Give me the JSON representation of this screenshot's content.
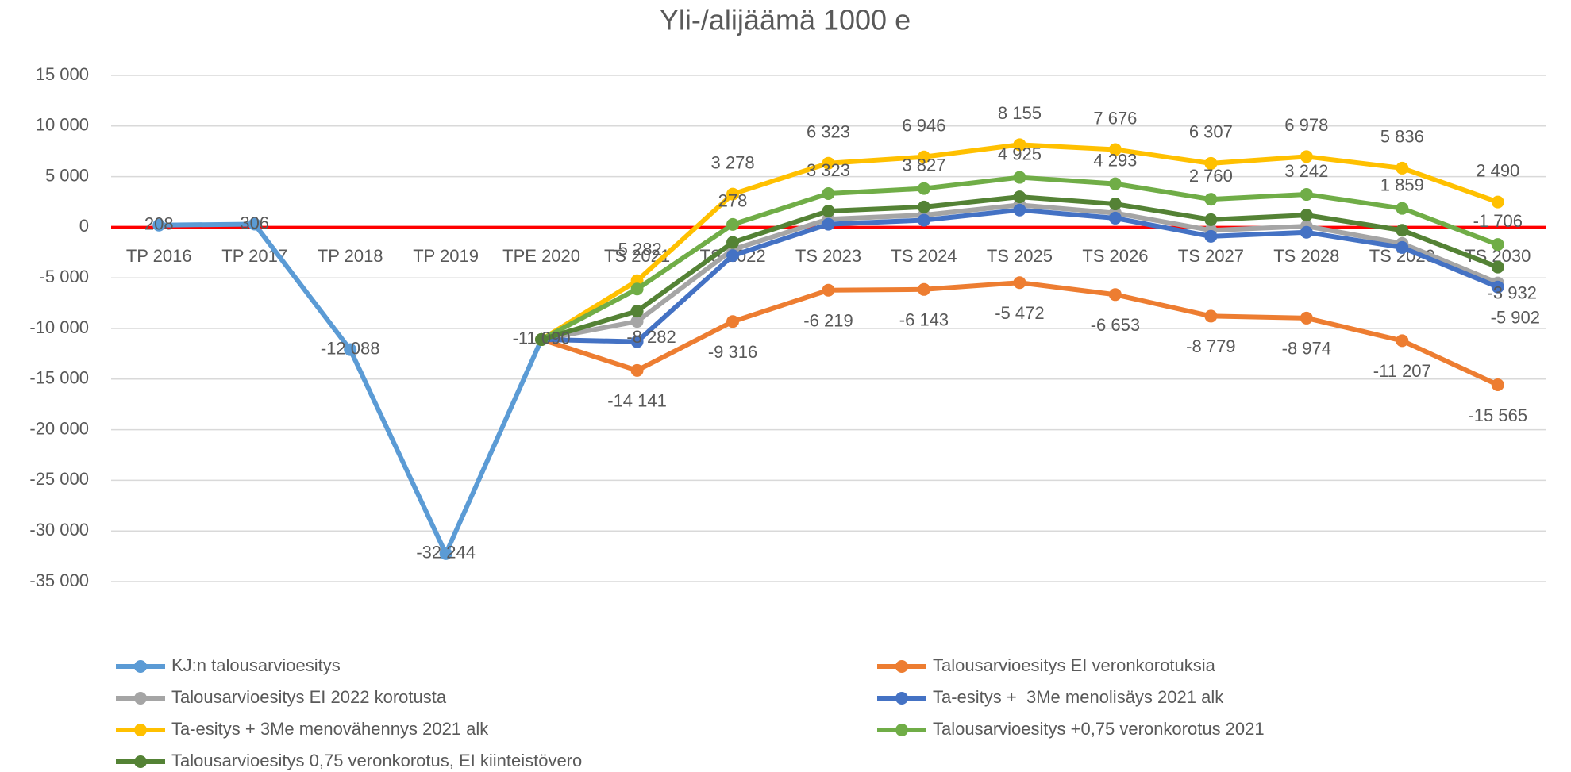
{
  "chart_data": {
    "type": "line",
    "title": "Yli-/alijäämä 1000 e",
    "categories": [
      "TP 2016",
      "TP 2017",
      "TP 2018",
      "TP 2019",
      "TPE 2020",
      "TS 2021",
      "TS 2022",
      "TS 2023",
      "TS 2024",
      "TS 2025",
      "TS 2026",
      "TS 2027",
      "TS 2028",
      "TS 2029",
      "TS 2030"
    ],
    "ylim": [
      -35000,
      15000
    ],
    "yticks": [
      {
        "value": -35000,
        "label": "-35 000"
      },
      {
        "value": -30000,
        "label": "-30 000"
      },
      {
        "value": -25000,
        "label": "-25 000"
      },
      {
        "value": -20000,
        "label": "-20 000"
      },
      {
        "value": -15000,
        "label": "-15 000"
      },
      {
        "value": -10000,
        "label": "-10 000"
      },
      {
        "value": -5000,
        "label": "-5 000"
      },
      0,
      {
        "value": 5000,
        "label": "5 000"
      },
      {
        "value": 10000,
        "label": "10 000"
      },
      {
        "value": 15000,
        "label": "15 000"
      }
    ],
    "grid": true,
    "series": [
      {
        "name": "KJ:n talousarvioesitys",
        "color": "#5b9bd5",
        "values": [
          208,
          306,
          -12088,
          -32244,
          -11090,
          null,
          null,
          null,
          null,
          null,
          null,
          null,
          null,
          null,
          null
        ],
        "value_labels": [
          "208",
          "306",
          "-12 088",
          "-32 244",
          "-11 090",
          null,
          null,
          null,
          null,
          null,
          null,
          null,
          null,
          null,
          null
        ]
      },
      {
        "name": "Talousarvioesitys EI veronkorotuksia",
        "color": "#ed7d31",
        "values": [
          null,
          null,
          null,
          null,
          -11090,
          -14141,
          -9316,
          -6219,
          -6143,
          -5472,
          -6653,
          -8779,
          -8974,
          -11207,
          -15565
        ],
        "value_labels": [
          null,
          null,
          null,
          null,
          null,
          "-14 141",
          "-9 316",
          "-6 219",
          "-6 143",
          "-5 472",
          "-6 653",
          "-8 779",
          "-8 974",
          "-11 207",
          "-15 565"
        ]
      },
      {
        "name": "Talousarvioesitys EI 2022 korotusta",
        "color": "#a5a5a5",
        "values": [
          null,
          null,
          null,
          null,
          -11090,
          -9300,
          -2200,
          800,
          1200,
          2200,
          1400,
          -300,
          100,
          -1600,
          -5500
        ]
      },
      {
        "name": "Ta-esitys +  3Me menolisäys 2021 alk",
        "color": "#4472c4",
        "values": [
          null,
          null,
          null,
          null,
          -11090,
          -11300,
          -2800,
          300,
          700,
          1700,
          900,
          -900,
          -500,
          -2000,
          -5902
        ],
        "value_labels": [
          null,
          null,
          null,
          null,
          null,
          null,
          null,
          null,
          null,
          null,
          null,
          null,
          null,
          null,
          "-5 902"
        ]
      },
      {
        "name": "Ta-esitys + 3Me menovähennys 2021 alk",
        "color": "#ffc000",
        "values": [
          null,
          null,
          null,
          null,
          -11090,
          -5282,
          3278,
          6323,
          6946,
          8155,
          7676,
          6307,
          6978,
          5836,
          2490
        ],
        "value_labels": [
          null,
          null,
          null,
          null,
          null,
          "-5 282",
          "3 278",
          "6 323",
          "6 946",
          "8 155",
          "7 676",
          "6 307",
          "6 978",
          "5 836",
          "2 490"
        ]
      },
      {
        "name": "Talousarvioesitys +0,75 veronkorotus 2021",
        "color": "#70ad47",
        "values": [
          null,
          null,
          null,
          null,
          -11090,
          -6100,
          278,
          3323,
          3827,
          4925,
          4293,
          2760,
          3242,
          1859,
          -1706
        ],
        "value_labels": [
          null,
          null,
          null,
          null,
          null,
          null,
          "278",
          "3 323",
          "3 827",
          "4 925",
          "4 293",
          "2 760",
          "3 242",
          "1 859",
          "-1 706"
        ]
      },
      {
        "name": "Talousarvioesitys 0,75 veronkorotus, EI kiinteistövero",
        "color": "#548235",
        "values": [
          null,
          null,
          null,
          null,
          -11090,
          -8282,
          -1500,
          1600,
          2000,
          3000,
          2300,
          750,
          1200,
          -300,
          -3932
        ],
        "value_labels": [
          null,
          null,
          null,
          null,
          null,
          "-8 282",
          null,
          null,
          null,
          null,
          null,
          null,
          null,
          null,
          "-3 932"
        ]
      }
    ]
  }
}
